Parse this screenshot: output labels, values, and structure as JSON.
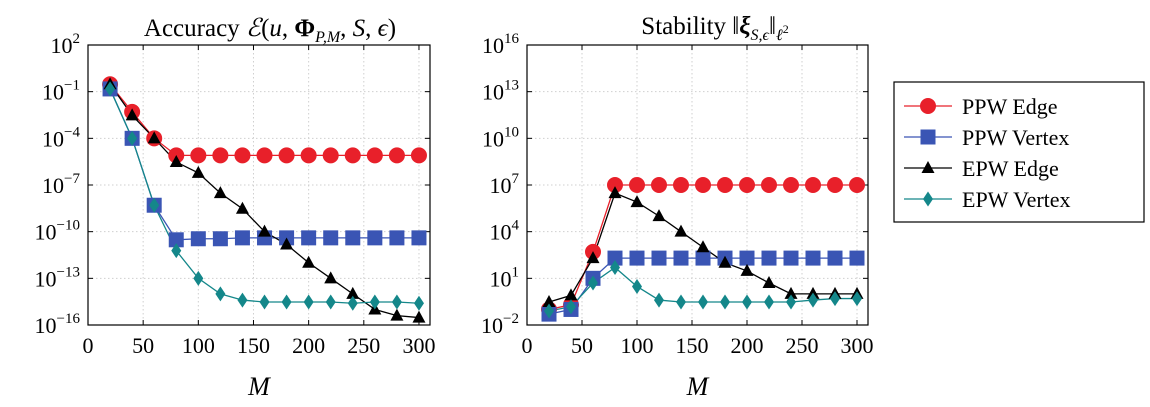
{
  "chart_data": [
    {
      "type": "line",
      "title": "Accuracy ℰ(u, Φ_{P,M}, S, ϵ)",
      "xlabel": "M",
      "ylabel": "",
      "yscale": "log",
      "xlim": [
        0,
        310
      ],
      "ylim_exp": [
        -16,
        2
      ],
      "xticks": [
        "0",
        "50",
        "100",
        "150",
        "200",
        "250",
        "300"
      ],
      "yticks": [
        {
          "base": "10",
          "exp": "2"
        },
        {
          "base": "10",
          "exp": "−1"
        },
        {
          "base": "10",
          "exp": "−4"
        },
        {
          "base": "10",
          "exp": "−7"
        },
        {
          "base": "10",
          "exp": "−10"
        },
        {
          "base": "10",
          "exp": "−13"
        },
        {
          "base": "10",
          "exp": "−16"
        }
      ],
      "x": [
        20,
        40,
        60,
        80,
        100,
        120,
        140,
        160,
        180,
        200,
        220,
        240,
        260,
        280,
        300
      ],
      "series": [
        {
          "name": "PPW Edge",
          "color": "#e8202a",
          "marker": "circle",
          "values": [
            0.3,
            0.005,
            0.0001,
            8e-06,
            8e-06,
            8e-06,
            8e-06,
            8e-06,
            8e-06,
            8e-06,
            8e-06,
            8e-06,
            8e-06,
            8e-06,
            8e-06
          ]
        },
        {
          "name": "PPW Vertex",
          "color": "#3a55b4",
          "marker": "square",
          "values": [
            0.15,
            0.0001,
            5e-09,
            3e-11,
            3.5e-11,
            3.5e-11,
            4e-11,
            4e-11,
            4e-11,
            4e-11,
            4e-11,
            4e-11,
            4e-11,
            4e-11,
            4e-11
          ]
        },
        {
          "name": "EPW Edge",
          "color": "#000000",
          "marker": "triangle",
          "values": [
            0.3,
            0.003,
            0.0001,
            3e-06,
            6e-07,
            3e-08,
            3e-09,
            1e-10,
            1.5e-11,
            1e-12,
            1e-13,
            1e-14,
            1e-15,
            4e-16,
            3e-16
          ]
        },
        {
          "name": "EPW Vertex",
          "color": "#14878a",
          "marker": "diamond",
          "values": [
            0.15,
            0.0001,
            5e-09,
            6e-12,
            1e-13,
            1e-14,
            4e-15,
            3e-15,
            3e-15,
            3e-15,
            3e-15,
            2.5e-15,
            3e-15,
            3e-15,
            2.5e-15
          ]
        }
      ]
    },
    {
      "type": "line",
      "title": "Stability ‖ξ_{S,ϵ}‖_{ℓ²}",
      "xlabel": "M",
      "ylabel": "",
      "yscale": "log",
      "xlim": [
        0,
        310
      ],
      "ylim_exp": [
        -2,
        16
      ],
      "xticks": [
        "0",
        "50",
        "100",
        "150",
        "200",
        "250",
        "300"
      ],
      "yticks": [
        {
          "base": "10",
          "exp": "16"
        },
        {
          "base": "10",
          "exp": "13"
        },
        {
          "base": "10",
          "exp": "10"
        },
        {
          "base": "10",
          "exp": "7"
        },
        {
          "base": "10",
          "exp": "4"
        },
        {
          "base": "10",
          "exp": "1"
        },
        {
          "base": "10",
          "exp": "−2"
        }
      ],
      "x": [
        20,
        40,
        60,
        80,
        100,
        120,
        140,
        160,
        180,
        200,
        220,
        240,
        260,
        280,
        300
      ],
      "series": [
        {
          "name": "PPW Edge",
          "color": "#e8202a",
          "marker": "circle",
          "values": [
            0.1,
            0.2,
            500,
            10000000.0,
            10000000.0,
            10000000.0,
            10000000.0,
            10000000.0,
            10000000.0,
            10000000.0,
            10000000.0,
            10000000.0,
            10000000.0,
            10000000.0,
            10000000.0
          ]
        },
        {
          "name": "PPW Vertex",
          "color": "#3a55b4",
          "marker": "square",
          "values": [
            0.05,
            0.1,
            10,
            200,
            200,
            200,
            200,
            200,
            200,
            200,
            200,
            200,
            200,
            200,
            200
          ]
        },
        {
          "name": "EPW Edge",
          "color": "#000000",
          "marker": "triangle",
          "values": [
            0.3,
            0.8,
            200,
            3000000.0,
            800000.0,
            100000.0,
            10000.0,
            1000,
            100,
            30,
            5,
            1,
            1,
            1,
            1
          ]
        },
        {
          "name": "EPW Vertex",
          "color": "#14878a",
          "marker": "diamond",
          "values": [
            0.08,
            0.15,
            5,
            50,
            3,
            0.4,
            0.3,
            0.3,
            0.3,
            0.3,
            0.3,
            0.3,
            0.4,
            0.5,
            0.5
          ]
        }
      ]
    }
  ],
  "legend": {
    "position": "right",
    "entries": [
      "PPW Edge",
      "PPW Vertex",
      "EPW Edge",
      "EPW Vertex"
    ]
  }
}
